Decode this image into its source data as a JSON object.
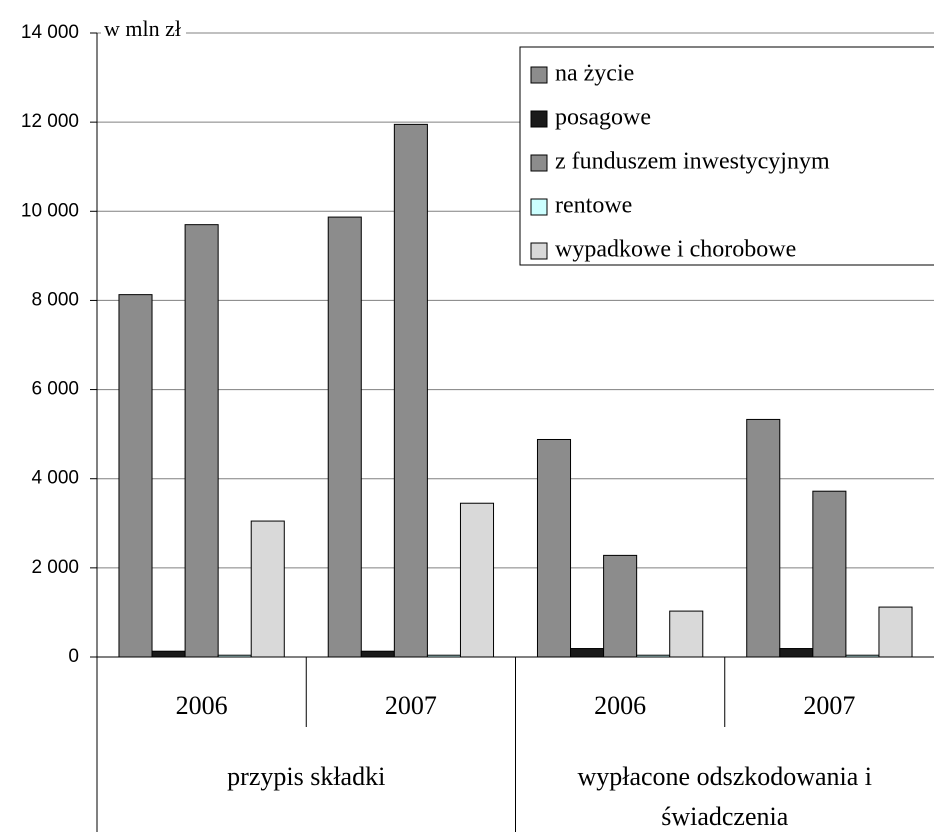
{
  "chart_data": {
    "type": "bar",
    "y_label": "w mln zł",
    "categories": [
      "2006",
      "2007",
      "2006",
      "2007"
    ],
    "groups": [
      {
        "label": "przypis składki",
        "span": 2
      },
      {
        "label": "wypłacone odszkodowania i świadczenia",
        "span": 2
      }
    ],
    "series": [
      {
        "name": "na życie",
        "color": "#8c8c8c",
        "values": [
          8130,
          9870,
          4880,
          5330
        ]
      },
      {
        "name": "posagowe",
        "color": "#1a1a1a",
        "values": [
          130,
          130,
          190,
          190
        ]
      },
      {
        "name": "z funduszem inwestycyjnym",
        "color": "#8c8c8c",
        "values": [
          9700,
          11950,
          2280,
          3720
        ]
      },
      {
        "name": "rentowe",
        "color": "#ccffff",
        "values": [
          40,
          40,
          40,
          40
        ]
      },
      {
        "name": "wypadkowe i chorobowe",
        "color": "#d9d9d9",
        "values": [
          3050,
          3450,
          1030,
          1120
        ]
      }
    ],
    "ylim": [
      0,
      14000
    ],
    "yticks": [
      0,
      {
        "value": 2000,
        "label": "2 000"
      },
      {
        "value": 4000,
        "label": "4 000"
      },
      {
        "value": 6000,
        "label": "6 000"
      },
      {
        "value": 8000,
        "label": "8 000"
      },
      {
        "value": 10000,
        "label": "10 000"
      },
      {
        "value": 12000,
        "label": "12 000"
      },
      {
        "value": 14000,
        "label": "14 000"
      }
    ],
    "grid": true,
    "legend": "top-right"
  }
}
